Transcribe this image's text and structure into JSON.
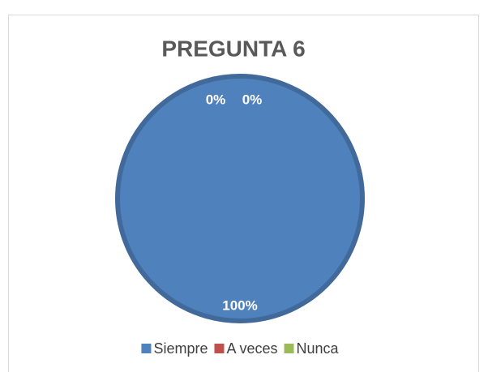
{
  "chart_data": {
    "type": "pie",
    "title": "PREGUNTA 6",
    "categories": [
      "Siempre",
      "A veces",
      "Nunca"
    ],
    "values": [
      100,
      0,
      0
    ],
    "value_labels": [
      "100%",
      "0%",
      "0%"
    ],
    "colors": [
      "#4f81bd",
      "#c0504d",
      "#9bbb59"
    ],
    "legend": "bottom"
  }
}
